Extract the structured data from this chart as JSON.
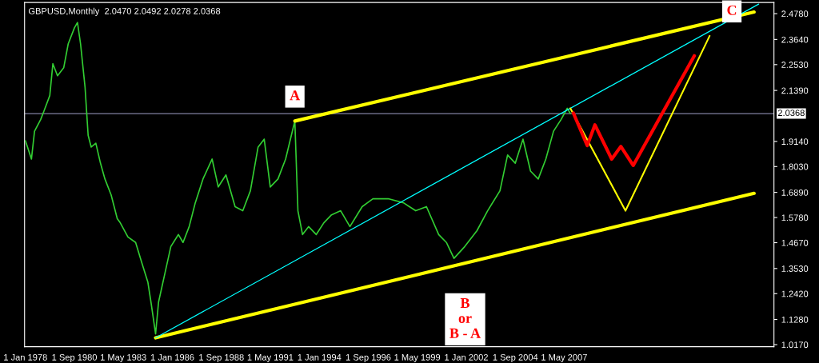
{
  "chart_data": {
    "type": "line",
    "title": "GBPUSD,Monthly  2.0470 2.0492 2.0278 2.0368",
    "series": [
      {
        "color": "#32cd32",
        "x": [
          "1978-01",
          "1978-05",
          "1978-07",
          "1978-11",
          "1979-01",
          "1979-05",
          "1979-07",
          "1979-10",
          "1980-02",
          "1980-05",
          "1980-09",
          "1980-11",
          "1981-01",
          "1981-04",
          "1981-06",
          "1981-08",
          "1981-11",
          "1982-02",
          "1982-05",
          "1982-09",
          "1983-01",
          "1983-03",
          "1983-08",
          "1984-01",
          "1984-05",
          "1984-09",
          "1984-11",
          "1985-02",
          "1985-04",
          "1985-08",
          "1985-12",
          "1986-05",
          "1986-08",
          "1986-12",
          "1987-04",
          "1987-09",
          "1988-03",
          "1988-07",
          "1988-12",
          "1989-06",
          "1989-11",
          "1990-04",
          "1990-09",
          "1991-01",
          "1991-05",
          "1991-10",
          "1992-03",
          "1992-08",
          "1992-09",
          "1992-11",
          "1993-02",
          "1993-06",
          "1993-11",
          "1994-04",
          "1994-09",
          "1995-03",
          "1995-09",
          "1996-05",
          "1996-12",
          "1997-10",
          "1998-08",
          "1999-04",
          "1999-11",
          "2000-07",
          "2000-12",
          "2001-05",
          "2001-12",
          "2002-08",
          "2003-03",
          "2003-11",
          "2004-04",
          "2004-09",
          "2005-02",
          "2005-07",
          "2005-12",
          "2006-05",
          "2006-10",
          "2007-03",
          "2007-07",
          "2007-09"
        ],
        "values": [
          1.917,
          1.836,
          1.959,
          2.011,
          2.046,
          2.117,
          2.257,
          2.204,
          2.239,
          2.345,
          2.415,
          2.439,
          2.345,
          2.152,
          1.941,
          1.889,
          1.906,
          1.818,
          1.748,
          1.678,
          1.573,
          1.555,
          1.492,
          1.468,
          1.38,
          1.292,
          1.205,
          1.064,
          1.205,
          1.327,
          1.45,
          1.503,
          1.468,
          1.538,
          1.643,
          1.748,
          1.836,
          1.713,
          1.766,
          1.626,
          1.608,
          1.696,
          1.889,
          1.924,
          1.713,
          1.748,
          1.836,
          1.976,
          2.004,
          1.608,
          1.503,
          1.538,
          1.503,
          1.555,
          1.59,
          1.608,
          1.538,
          1.626,
          1.661,
          1.661,
          1.643,
          1.608,
          1.626,
          1.503,
          1.468,
          1.398,
          1.45,
          1.52,
          1.608,
          1.696,
          1.854,
          1.818,
          1.924,
          1.783,
          1.748,
          1.836,
          1.959,
          2.011,
          2.06,
          2.037
        ]
      },
      {
        "color": "#ffff00",
        "x": [
          "1992-09",
          "2017-09"
        ],
        "values": [
          2.004,
          2.485
        ]
      },
      {
        "color": "#ffff00",
        "x": [
          "1985-02",
          "2017-09"
        ],
        "values": [
          1.047,
          1.685
        ]
      },
      {
        "color": "#00ffff",
        "x": [
          "1985-02",
          "2017-12"
        ],
        "values": [
          1.047,
          2.52
        ]
      },
      {
        "color": "#ffff00",
        "x": [
          "2007-09",
          "2010-09",
          "2015-04"
        ],
        "values": [
          2.06,
          1.608,
          2.38
        ]
      },
      {
        "color": "#ff0000",
        "x": [
          "2007-11",
          "2008-08",
          "2009-01",
          "2009-12",
          "2010-06",
          "2011-02",
          "2014-06"
        ],
        "values": [
          2.039,
          1.896,
          1.987,
          1.836,
          1.892,
          1.808,
          2.292
        ]
      }
    ],
    "xlim": [
      "1977-12-15",
      "2018-10"
    ],
    "xticks": [
      {
        "value": "1978-01-01",
        "label": "1 Jan 1978"
      },
      {
        "value": "1980-09-01",
        "label": "1 Sep 1980"
      },
      {
        "value": "1983-05-01",
        "label": "1 May 1983"
      },
      {
        "value": "1986-01-01",
        "label": "1 Jan 1986"
      },
      {
        "value": "1988-09-01",
        "label": "1 Sep 1988"
      },
      {
        "value": "1991-05-01",
        "label": "1 May 1991"
      },
      {
        "value": "1994-01-01",
        "label": "1 Jan 1994"
      },
      {
        "value": "1996-09-01",
        "label": "1 Sep 1996"
      },
      {
        "value": "1999-05-01",
        "label": "1 May 1999"
      },
      {
        "value": "2002-01-01",
        "label": "1 Jan 2002"
      },
      {
        "value": "2004-09-01",
        "label": "1 Sep 2004"
      },
      {
        "value": "2007-05-01",
        "label": "1 May 2007"
      }
    ],
    "ylim": [
      1.008,
      2.527
    ],
    "yticks": [
      {
        "value": 1.017,
        "label": "1.0170"
      },
      {
        "value": 1.128,
        "label": "1.1280"
      },
      {
        "value": 1.242,
        "label": "1.2420"
      },
      {
        "value": 1.353,
        "label": "1.3530"
      },
      {
        "value": 1.467,
        "label": "1.4670"
      },
      {
        "value": 1.578,
        "label": "1.5780"
      },
      {
        "value": 1.689,
        "label": "1.6890"
      },
      {
        "value": 1.803,
        "label": "1.8030"
      },
      {
        "value": 1.914,
        "label": "1.9140"
      },
      {
        "value": 2.139,
        "label": "2.1390"
      },
      {
        "value": 2.253,
        "label": "2.2530"
      },
      {
        "value": 2.364,
        "label": "2.3640"
      },
      {
        "value": 2.478,
        "label": "2.4780"
      }
    ],
    "ref_lines": [
      {
        "axis": "y",
        "value": 2.0368,
        "label": "2.0368",
        "color": "#8080a0"
      }
    ],
    "annotations": [
      {
        "text": "A",
        "x": "1992-09",
        "y": 2.004
      },
      {
        "text": "B\nor\nB - A",
        "x": "2001-05",
        "y": 1.398
      },
      {
        "text": "C",
        "x": "2015-04",
        "y": 2.38
      }
    ],
    "grid": false,
    "legend": false
  }
}
